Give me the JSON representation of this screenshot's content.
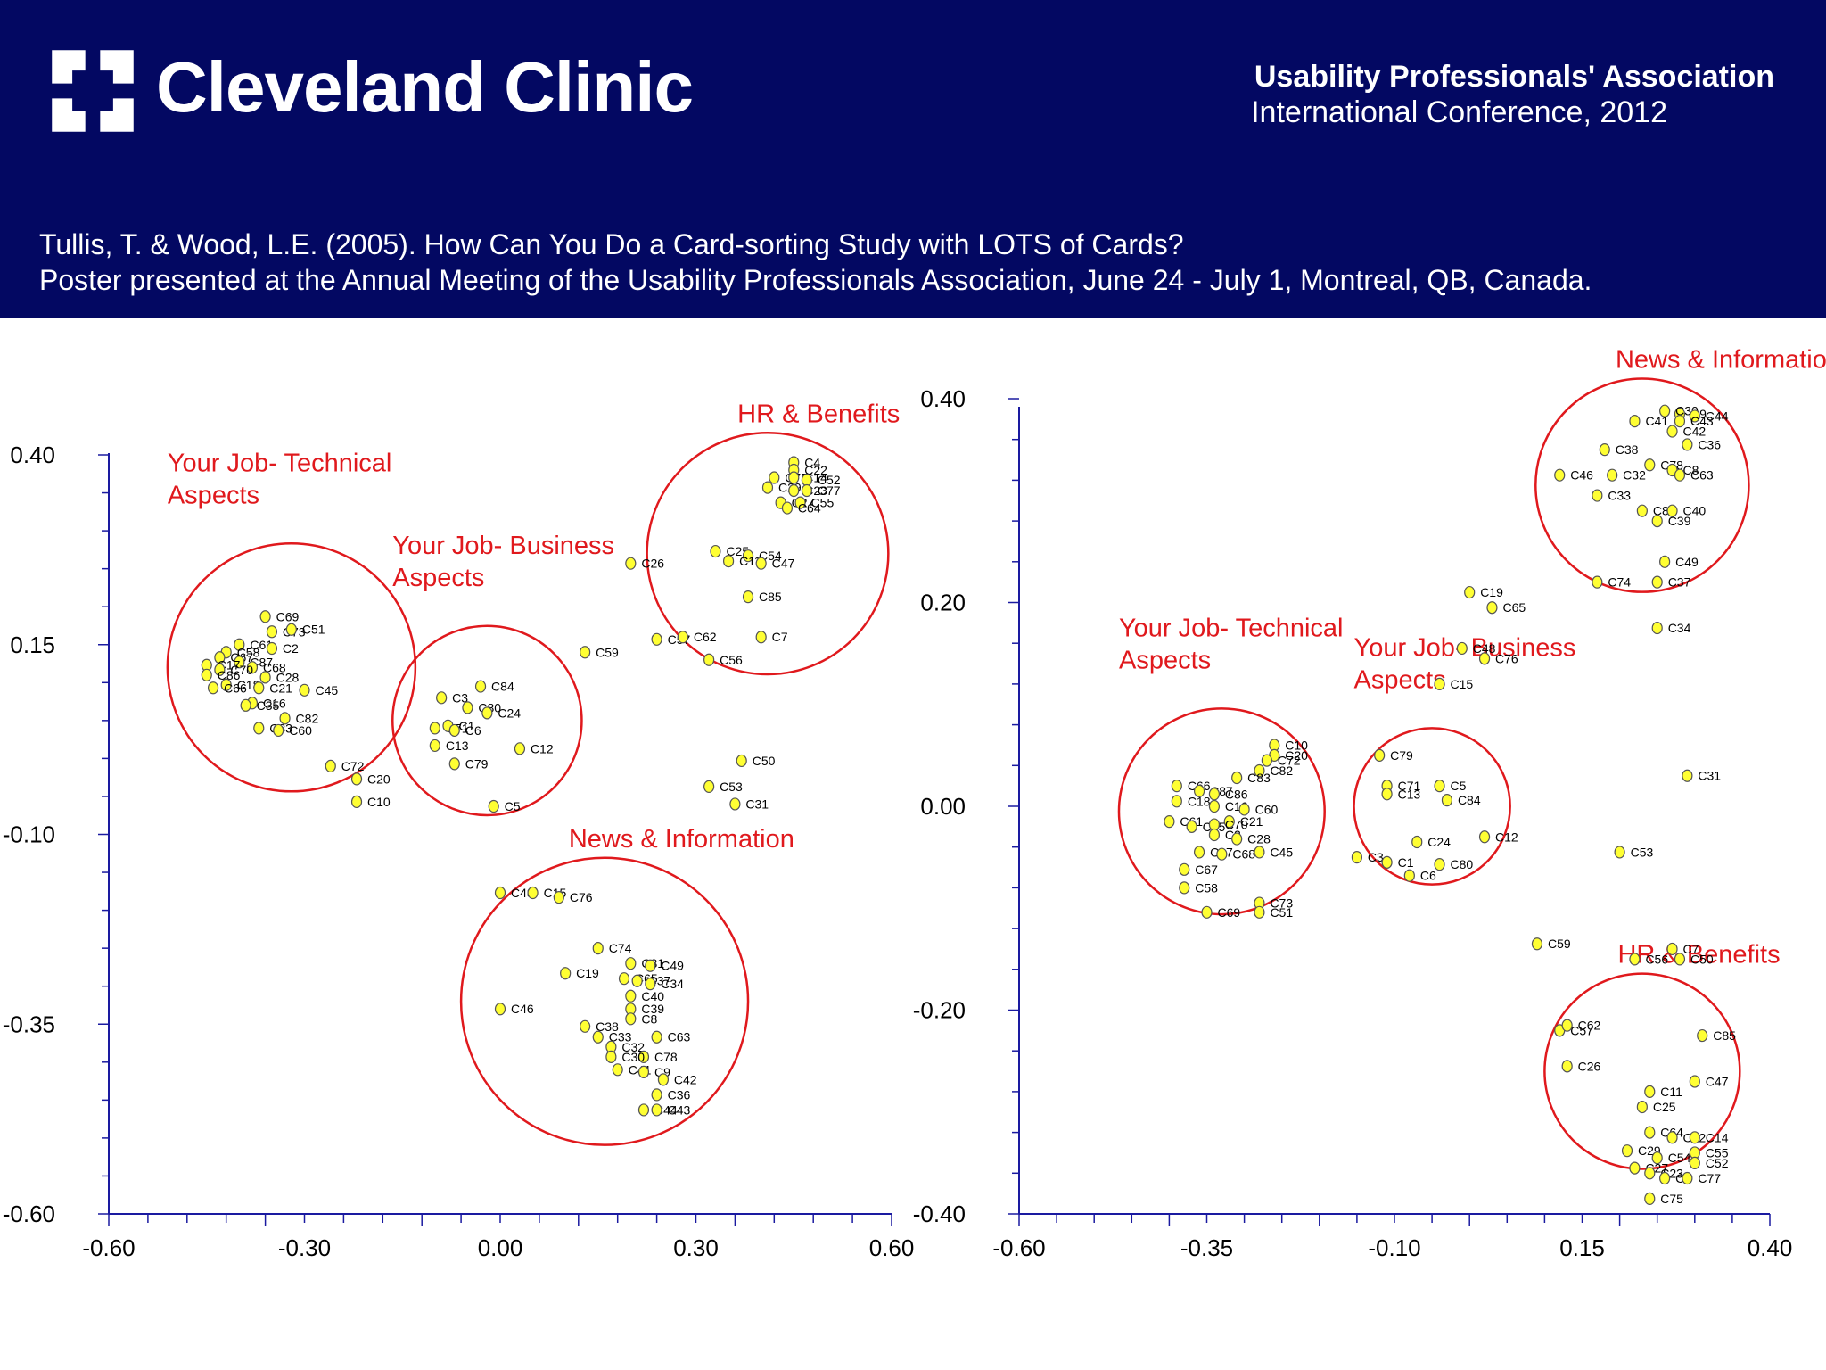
{
  "header": {
    "brand_name": "Cleveland Clinic",
    "conference_title": "Usability Professionals' Association",
    "conference_subtitle": "International Conference, 2012",
    "citation_line1": "Tullis, T. & Wood, L.E. (2005). How Can You Do a Card-sorting Study with LOTS of Cards?",
    "citation_line2": "Poster presented at the Annual Meeting of the Usability Professionals Association, June 24 - July 1, Montreal, QB, Canada."
  },
  "colors": {
    "header_bg": "#030862",
    "axis": "#1a1aa0",
    "point_fill": "#ffff33",
    "circle": "#e0191d",
    "group_label": "#e0191d"
  },
  "chart_data": [
    {
      "type": "scatter",
      "title": "",
      "xlim": [
        -0.6,
        0.6
      ],
      "ylim": [
        -0.6,
        0.45
      ],
      "x_ticks": [
        -0.6,
        -0.3,
        0.0,
        0.3,
        0.6
      ],
      "x_tick_labels": [
        "-0.60",
        "-0.30",
        "0.00",
        "0.30",
        "0.60"
      ],
      "y_ticks": [
        0.4,
        0.15,
        -0.1,
        -0.35,
        -0.6
      ],
      "y_tick_labels": [
        "0.40",
        "0.15",
        "-0.10",
        "-0.35",
        "-0.60"
      ],
      "groups": [
        {
          "label": [
            "Your Job- Technical",
            "Aspects"
          ],
          "center": [
            -0.32,
            0.12
          ],
          "radius": 0.19
        },
        {
          "label": [
            "Your Job- Business",
            "Aspects"
          ],
          "center": [
            -0.02,
            0.05
          ],
          "radius": 0.145
        },
        {
          "label": [
            "HR & Benefits"
          ],
          "center": [
            0.41,
            0.27
          ],
          "radius": 0.185
        },
        {
          "label": [
            "News & Information"
          ],
          "center": [
            0.16,
            -0.32
          ],
          "radius": 0.22
        }
      ],
      "points": [
        {
          "label": "C69",
          "x": -0.36,
          "y": 0.187
        },
        {
          "label": "C73",
          "x": -0.35,
          "y": 0.167
        },
        {
          "label": "C51",
          "x": -0.32,
          "y": 0.17
        },
        {
          "label": "C61",
          "x": -0.4,
          "y": 0.15
        },
        {
          "label": "C2",
          "x": -0.35,
          "y": 0.145
        },
        {
          "label": "C58",
          "x": -0.42,
          "y": 0.14
        },
        {
          "label": "C67",
          "x": -0.43,
          "y": 0.133
        },
        {
          "label": "C87",
          "x": -0.4,
          "y": 0.127
        },
        {
          "label": "C17",
          "x": -0.45,
          "y": 0.123
        },
        {
          "label": "C68",
          "x": -0.38,
          "y": 0.12
        },
        {
          "label": "C70",
          "x": -0.43,
          "y": 0.117
        },
        {
          "label": "C28",
          "x": -0.36,
          "y": 0.107
        },
        {
          "label": "C86",
          "x": -0.45,
          "y": 0.11
        },
        {
          "label": "C18",
          "x": -0.42,
          "y": 0.097
        },
        {
          "label": "C21",
          "x": -0.37,
          "y": 0.093
        },
        {
          "label": "C66",
          "x": -0.44,
          "y": 0.093
        },
        {
          "label": "C45",
          "x": -0.3,
          "y": 0.09
        },
        {
          "label": "C16",
          "x": -0.38,
          "y": 0.073
        },
        {
          "label": "C35",
          "x": -0.39,
          "y": 0.07
        },
        {
          "label": "C82",
          "x": -0.33,
          "y": 0.053
        },
        {
          "label": "C83",
          "x": -0.37,
          "y": 0.04
        },
        {
          "label": "C60",
          "x": -0.34,
          "y": 0.037
        },
        {
          "label": "C72",
          "x": -0.26,
          "y": -0.01
        },
        {
          "label": "C20",
          "x": -0.22,
          "y": -0.027
        },
        {
          "label": "C10",
          "x": -0.22,
          "y": -0.057
        },
        {
          "label": "C3",
          "x": -0.09,
          "y": 0.08
        },
        {
          "label": "C84",
          "x": -0.03,
          "y": 0.095
        },
        {
          "label": "C80",
          "x": -0.05,
          "y": 0.067
        },
        {
          "label": "C24",
          "x": -0.02,
          "y": 0.06
        },
        {
          "label": "C71",
          "x": -0.1,
          "y": 0.04
        },
        {
          "label": "C1",
          "x": -0.08,
          "y": 0.043
        },
        {
          "label": "C6",
          "x": -0.07,
          "y": 0.037
        },
        {
          "label": "C13",
          "x": -0.1,
          "y": 0.017
        },
        {
          "label": "C12",
          "x": 0.03,
          "y": 0.013
        },
        {
          "label": "C79",
          "x": -0.07,
          "y": -0.007
        },
        {
          "label": "C5",
          "x": -0.01,
          "y": -0.063
        },
        {
          "label": "C26",
          "x": 0.2,
          "y": 0.257
        },
        {
          "label": "C57",
          "x": 0.24,
          "y": 0.157
        },
        {
          "label": "C62",
          "x": 0.28,
          "y": 0.16
        },
        {
          "label": "C59",
          "x": 0.13,
          "y": 0.14
        },
        {
          "label": "C4",
          "x": 0.45,
          "y": 0.39
        },
        {
          "label": "C22",
          "x": 0.45,
          "y": 0.38
        },
        {
          "label": "C75",
          "x": 0.42,
          "y": 0.37
        },
        {
          "label": "C14",
          "x": 0.45,
          "y": 0.37
        },
        {
          "label": "C52",
          "x": 0.47,
          "y": 0.367
        },
        {
          "label": "C29",
          "x": 0.41,
          "y": 0.357
        },
        {
          "label": "C23",
          "x": 0.45,
          "y": 0.353
        },
        {
          "label": "C77",
          "x": 0.47,
          "y": 0.353
        },
        {
          "label": "C27",
          "x": 0.43,
          "y": 0.337
        },
        {
          "label": "C55",
          "x": 0.46,
          "y": 0.337
        },
        {
          "label": "C64",
          "x": 0.44,
          "y": 0.33
        },
        {
          "label": "C25",
          "x": 0.33,
          "y": 0.273
        },
        {
          "label": "C54",
          "x": 0.38,
          "y": 0.267
        },
        {
          "label": "C11",
          "x": 0.35,
          "y": 0.26
        },
        {
          "label": "C47",
          "x": 0.4,
          "y": 0.257
        },
        {
          "label": "C85",
          "x": 0.38,
          "y": 0.213
        },
        {
          "label": "C7",
          "x": 0.4,
          "y": 0.16
        },
        {
          "label": "C56",
          "x": 0.32,
          "y": 0.13
        },
        {
          "label": "C50",
          "x": 0.37,
          "y": -0.003
        },
        {
          "label": "C53",
          "x": 0.32,
          "y": -0.037
        },
        {
          "label": "C31",
          "x": 0.36,
          "y": -0.06
        },
        {
          "label": "C48",
          "x": 0.0,
          "y": -0.177
        },
        {
          "label": "C15",
          "x": 0.05,
          "y": -0.177
        },
        {
          "label": "C76",
          "x": 0.09,
          "y": -0.183
        },
        {
          "label": "C74",
          "x": 0.15,
          "y": -0.25
        },
        {
          "label": "C81",
          "x": 0.2,
          "y": -0.27
        },
        {
          "label": "C49",
          "x": 0.23,
          "y": -0.273
        },
        {
          "label": "C19",
          "x": 0.1,
          "y": -0.283
        },
        {
          "label": "C65",
          "x": 0.19,
          "y": -0.29
        },
        {
          "label": "C37",
          "x": 0.21,
          "y": -0.293
        },
        {
          "label": "C34",
          "x": 0.23,
          "y": -0.297
        },
        {
          "label": "C40",
          "x": 0.2,
          "y": -0.313
        },
        {
          "label": "C39",
          "x": 0.2,
          "y": -0.33
        },
        {
          "label": "C46",
          "x": 0.0,
          "y": -0.33
        },
        {
          "label": "C8",
          "x": 0.2,
          "y": -0.343
        },
        {
          "label": "C38",
          "x": 0.13,
          "y": -0.353
        },
        {
          "label": "C33",
          "x": 0.15,
          "y": -0.367
        },
        {
          "label": "C32",
          "x": 0.17,
          "y": -0.38
        },
        {
          "label": "C63",
          "x": 0.24,
          "y": -0.367
        },
        {
          "label": "C78",
          "x": 0.22,
          "y": -0.393
        },
        {
          "label": "C30",
          "x": 0.17,
          "y": -0.393
        },
        {
          "label": "C41",
          "x": 0.18,
          "y": -0.41
        },
        {
          "label": "C9",
          "x": 0.22,
          "y": -0.413
        },
        {
          "label": "C42",
          "x": 0.25,
          "y": -0.423
        },
        {
          "label": "C36",
          "x": 0.24,
          "y": -0.443
        },
        {
          "label": "C44",
          "x": 0.22,
          "y": -0.463
        },
        {
          "label": "C43",
          "x": 0.24,
          "y": -0.463
        }
      ]
    },
    {
      "type": "scatter",
      "title": "",
      "xlim": [
        -0.6,
        0.4
      ],
      "ylim": [
        -0.4,
        0.4
      ],
      "x_ticks": [
        -0.6,
        -0.35,
        -0.1,
        0.15,
        0.4
      ],
      "x_tick_labels": [
        "-0.60",
        "-0.35",
        "-0.10",
        "0.15",
        "0.40"
      ],
      "y_ticks": [
        0.4,
        0.2,
        0.0,
        -0.2,
        -0.4
      ],
      "y_tick_labels": [
        "0.40",
        "0.20",
        "0.00",
        "-0.20",
        "-0.40"
      ],
      "groups": [
        {
          "label": [
            "News & Information"
          ],
          "center": [
            0.23,
            0.315
          ],
          "radius": 0.142
        },
        {
          "label": [
            "Your Job- Technical",
            "Aspects"
          ],
          "center": [
            -0.33,
            -0.005
          ],
          "radius": 0.137
        },
        {
          "label": [
            "Your Job- Business",
            "Aspects"
          ],
          "center": [
            -0.05,
            0.0
          ],
          "radius": 0.104
        },
        {
          "label": [
            "HR & Benefits"
          ],
          "center": [
            0.23,
            -0.26
          ],
          "radius": 0.13
        }
      ],
      "points": [
        {
          "label": "C9",
          "x": 0.28,
          "y": 0.385
        },
        {
          "label": "C30",
          "x": 0.26,
          "y": 0.388
        },
        {
          "label": "C44",
          "x": 0.3,
          "y": 0.383
        },
        {
          "label": "C41",
          "x": 0.22,
          "y": 0.378
        },
        {
          "label": "C43",
          "x": 0.28,
          "y": 0.378
        },
        {
          "label": "C42",
          "x": 0.27,
          "y": 0.368
        },
        {
          "label": "C36",
          "x": 0.29,
          "y": 0.355
        },
        {
          "label": "C38",
          "x": 0.18,
          "y": 0.35
        },
        {
          "label": "C46",
          "x": 0.12,
          "y": 0.325
        },
        {
          "label": "C78",
          "x": 0.24,
          "y": 0.335
        },
        {
          "label": "C8",
          "x": 0.27,
          "y": 0.33
        },
        {
          "label": "C32",
          "x": 0.19,
          "y": 0.325
        },
        {
          "label": "C63",
          "x": 0.28,
          "y": 0.325
        },
        {
          "label": "C33",
          "x": 0.17,
          "y": 0.305
        },
        {
          "label": "C81",
          "x": 0.23,
          "y": 0.29
        },
        {
          "label": "C40",
          "x": 0.27,
          "y": 0.29
        },
        {
          "label": "C39",
          "x": 0.25,
          "y": 0.28
        },
        {
          "label": "C49",
          "x": 0.26,
          "y": 0.24
        },
        {
          "label": "C74",
          "x": 0.17,
          "y": 0.22
        },
        {
          "label": "C37",
          "x": 0.25,
          "y": 0.22
        },
        {
          "label": "C34",
          "x": 0.25,
          "y": 0.175
        },
        {
          "label": "C19",
          "x": 0.0,
          "y": 0.21
        },
        {
          "label": "C65",
          "x": 0.03,
          "y": 0.195
        },
        {
          "label": "C48",
          "x": -0.01,
          "y": 0.155
        },
        {
          "label": "C76",
          "x": 0.02,
          "y": 0.145
        },
        {
          "label": "C15",
          "x": -0.04,
          "y": 0.12
        },
        {
          "label": "C10",
          "x": -0.26,
          "y": 0.06
        },
        {
          "label": "C20",
          "x": -0.26,
          "y": 0.05
        },
        {
          "label": "C72",
          "x": -0.27,
          "y": 0.045
        },
        {
          "label": "C82",
          "x": -0.28,
          "y": 0.035
        },
        {
          "label": "C83",
          "x": -0.31,
          "y": 0.028
        },
        {
          "label": "C66",
          "x": -0.39,
          "y": 0.02
        },
        {
          "label": "C87",
          "x": -0.36,
          "y": 0.015
        },
        {
          "label": "C86",
          "x": -0.34,
          "y": 0.012
        },
        {
          "label": "C18",
          "x": -0.39,
          "y": 0.005
        },
        {
          "label": "C16",
          "x": -0.34,
          "y": 0.0
        },
        {
          "label": "C60",
          "x": -0.3,
          "y": -0.003
        },
        {
          "label": "C21",
          "x": -0.32,
          "y": -0.015
        },
        {
          "label": "C61",
          "x": -0.4,
          "y": -0.015
        },
        {
          "label": "C35",
          "x": -0.37,
          "y": -0.02
        },
        {
          "label": "C70",
          "x": -0.34,
          "y": -0.018
        },
        {
          "label": "C2",
          "x": -0.34,
          "y": -0.028
        },
        {
          "label": "C28",
          "x": -0.31,
          "y": -0.032
        },
        {
          "label": "C17",
          "x": -0.36,
          "y": -0.045
        },
        {
          "label": "C68",
          "x": -0.33,
          "y": -0.047
        },
        {
          "label": "C45",
          "x": -0.28,
          "y": -0.045
        },
        {
          "label": "C67",
          "x": -0.38,
          "y": -0.062
        },
        {
          "label": "C58",
          "x": -0.38,
          "y": -0.08
        },
        {
          "label": "C69",
          "x": -0.35,
          "y": -0.104
        },
        {
          "label": "C73",
          "x": -0.28,
          "y": -0.095
        },
        {
          "label": "C51",
          "x": -0.28,
          "y": -0.104
        },
        {
          "label": "C79",
          "x": -0.12,
          "y": 0.05
        },
        {
          "label": "C71",
          "x": -0.11,
          "y": 0.02
        },
        {
          "label": "C13",
          "x": -0.11,
          "y": 0.012
        },
        {
          "label": "C5",
          "x": -0.04,
          "y": 0.02
        },
        {
          "label": "C84",
          "x": -0.03,
          "y": 0.006
        },
        {
          "label": "C12",
          "x": 0.02,
          "y": -0.03
        },
        {
          "label": "C3",
          "x": -0.15,
          "y": -0.05
        },
        {
          "label": "C24",
          "x": -0.07,
          "y": -0.035
        },
        {
          "label": "C1",
          "x": -0.11,
          "y": -0.055
        },
        {
          "label": "C80",
          "x": -0.04,
          "y": -0.057
        },
        {
          "label": "C6",
          "x": -0.08,
          "y": -0.068
        },
        {
          "label": "C31",
          "x": 0.29,
          "y": 0.03
        },
        {
          "label": "C53",
          "x": 0.2,
          "y": -0.045
        },
        {
          "label": "C59",
          "x": 0.09,
          "y": -0.135
        },
        {
          "label": "C7",
          "x": 0.27,
          "y": -0.14
        },
        {
          "label": "C56",
          "x": 0.22,
          "y": -0.15
        },
        {
          "label": "C50",
          "x": 0.28,
          "y": -0.15
        },
        {
          "label": "C85",
          "x": 0.31,
          "y": -0.225
        },
        {
          "label": "C57",
          "x": 0.12,
          "y": -0.22
        },
        {
          "label": "C62",
          "x": 0.13,
          "y": -0.215
        },
        {
          "label": "C26",
          "x": 0.13,
          "y": -0.255
        },
        {
          "label": "C47",
          "x": 0.3,
          "y": -0.27
        },
        {
          "label": "C11",
          "x": 0.24,
          "y": -0.28
        },
        {
          "label": "C25",
          "x": 0.23,
          "y": -0.295
        },
        {
          "label": "C64",
          "x": 0.24,
          "y": -0.32
        },
        {
          "label": "C22",
          "x": 0.27,
          "y": -0.325
        },
        {
          "label": "C14",
          "x": 0.3,
          "y": -0.325
        },
        {
          "label": "C29",
          "x": 0.21,
          "y": -0.338
        },
        {
          "label": "C54",
          "x": 0.25,
          "y": -0.345
        },
        {
          "label": "C55",
          "x": 0.3,
          "y": -0.34
        },
        {
          "label": "C52",
          "x": 0.3,
          "y": -0.35
        },
        {
          "label": "C27",
          "x": 0.22,
          "y": -0.355
        },
        {
          "label": "C23",
          "x": 0.24,
          "y": -0.36
        },
        {
          "label": "C4",
          "x": 0.26,
          "y": -0.365
        },
        {
          "label": "C77",
          "x": 0.29,
          "y": -0.365
        },
        {
          "label": "C75",
          "x": 0.24,
          "y": -0.385
        }
      ]
    }
  ]
}
